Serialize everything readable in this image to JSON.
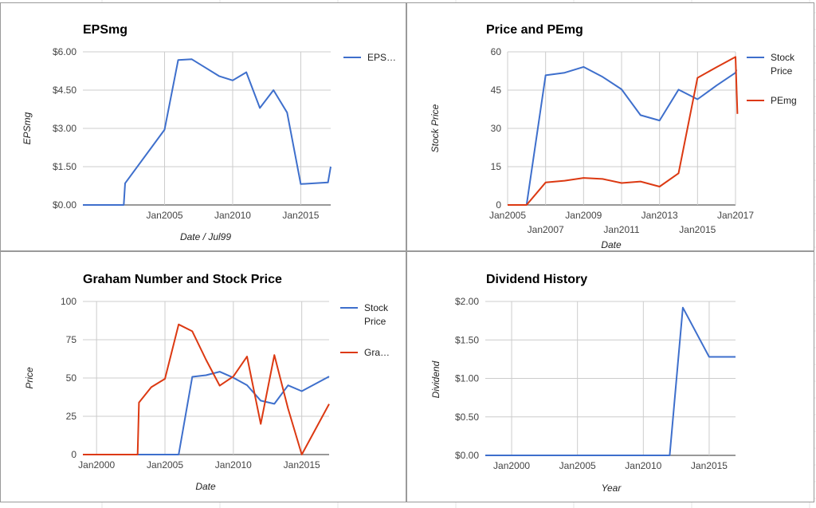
{
  "colors": {
    "blue": "#3e6fcc",
    "red": "#dc3912",
    "grid": "#cccccc",
    "axis": "#333333"
  },
  "chart_data": [
    {
      "type": "line",
      "title": "EPSmg",
      "xlabel": "Date / Jul99",
      "ylabel": "EPSmg",
      "xlim": [
        1999.0,
        2017.2
      ],
      "ylim": [
        0,
        6
      ],
      "x_ticks": [
        {
          "value": 2005,
          "label": "Jan2005"
        },
        {
          "value": 2010,
          "label": "Jan2010"
        },
        {
          "value": 2015,
          "label": "Jan2015"
        }
      ],
      "y_ticks": [
        {
          "value": 0,
          "label": "$0.00"
        },
        {
          "value": 1.5,
          "label": "$1.50"
        },
        {
          "value": 3,
          "label": "$3.00"
        },
        {
          "value": 4.5,
          "label": "$4.50"
        },
        {
          "value": 6,
          "label": "$6.00"
        }
      ],
      "legend_position": "right",
      "series": [
        {
          "name": "EPS…",
          "color": "#3e6fcc",
          "x": [
            1999.0,
            2002.0,
            2002.1,
            2005.0,
            2006.0,
            2007.0,
            2009.0,
            2010.0,
            2011.0,
            2012.0,
            2013.0,
            2014.0,
            2015.0,
            2017.0,
            2017.2
          ],
          "y": [
            0,
            0,
            0.85,
            2.95,
            5.68,
            5.71,
            5.05,
            4.88,
            5.2,
            3.8,
            4.5,
            3.62,
            0.82,
            0.88,
            1.5
          ]
        }
      ]
    },
    {
      "type": "line",
      "title": "Price and PEmg",
      "xlabel": "Date",
      "ylabel": "Stock Price",
      "xlim": [
        2005.0,
        2017.0
      ],
      "ylim": [
        0,
        60
      ],
      "x_ticks": [
        {
          "value": 2005,
          "label": "Jan2005",
          "row": 0
        },
        {
          "value": 2007,
          "label": "Jan2007",
          "row": 1
        },
        {
          "value": 2009,
          "label": "Jan2009",
          "row": 0
        },
        {
          "value": 2011,
          "label": "Jan2011",
          "row": 1
        },
        {
          "value": 2013,
          "label": "Jan2013",
          "row": 0
        },
        {
          "value": 2015,
          "label": "Jan2015",
          "row": 1
        },
        {
          "value": 2017,
          "label": "Jan2017",
          "row": 0
        }
      ],
      "y_ticks": [
        {
          "value": 0,
          "label": "0"
        },
        {
          "value": 15,
          "label": "15"
        },
        {
          "value": 30,
          "label": "30"
        },
        {
          "value": 45,
          "label": "45"
        },
        {
          "value": 60,
          "label": "60"
        }
      ],
      "legend_position": "right",
      "series": [
        {
          "name": "Stock Price",
          "color": "#3e6fcc",
          "x": [
            2005.0,
            2006.0,
            2007.0,
            2008.0,
            2009.0,
            2010.0,
            2011.0,
            2012.0,
            2013.0,
            2014.0,
            2015.0,
            2016.0,
            2017.0,
            2017.05
          ],
          "y": [
            0,
            0,
            50.8,
            51.8,
            54.1,
            50.2,
            45.3,
            35.2,
            33.1,
            45.2,
            41.4,
            46.8,
            51.8,
            53.0
          ]
        },
        {
          "name": "PEmg",
          "color": "#dc3912",
          "x": [
            2005.0,
            2006.0,
            2007.0,
            2008.0,
            2009.0,
            2010.0,
            2011.0,
            2012.0,
            2013.0,
            2014.0,
            2015.0,
            2016.0,
            2017.0,
            2017.1
          ],
          "y": [
            0,
            0,
            8.8,
            9.5,
            10.6,
            10.2,
            8.6,
            9.2,
            7.2,
            12.4,
            49.8,
            54.0,
            58.0,
            35.7
          ]
        }
      ]
    },
    {
      "type": "line",
      "title": "Graham Number and Stock Price",
      "xlabel": "Date",
      "ylabel": "Price",
      "xlim": [
        1999.0,
        2017.0
      ],
      "ylim": [
        0,
        100
      ],
      "x_ticks": [
        {
          "value": 2000,
          "label": "Jan2000"
        },
        {
          "value": 2005,
          "label": "Jan2005"
        },
        {
          "value": 2010,
          "label": "Jan2010"
        },
        {
          "value": 2015,
          "label": "Jan2015"
        }
      ],
      "y_ticks": [
        {
          "value": 0,
          "label": "0"
        },
        {
          "value": 25,
          "label": "25"
        },
        {
          "value": 50,
          "label": "50"
        },
        {
          "value": 75,
          "label": "75"
        },
        {
          "value": 100,
          "label": "100"
        }
      ],
      "legend_position": "right",
      "series": [
        {
          "name": "Stock Price",
          "color": "#3e6fcc",
          "x": [
            1999.0,
            2005.0,
            2006.0,
            2007.0,
            2008.0,
            2009.0,
            2010.0,
            2011.0,
            2012.0,
            2013.0,
            2014.0,
            2015.0,
            2017.0
          ],
          "y": [
            0,
            0,
            0,
            50.8,
            51.8,
            54.1,
            50.2,
            45.3,
            35.2,
            33.1,
            45.2,
            41.4,
            51.0
          ]
        },
        {
          "name": "Gra…",
          "color": "#dc3912",
          "x": [
            1999.0,
            2003.0,
            2003.1,
            2004.0,
            2005.0,
            2006.0,
            2007.0,
            2008.0,
            2009.0,
            2010.0,
            2011.0,
            2012.0,
            2013.0,
            2014.0,
            2015.0,
            2017.0
          ],
          "y": [
            0,
            0,
            34,
            44,
            49.5,
            85,
            80.5,
            62,
            45,
            51,
            64,
            20,
            65,
            30,
            0,
            33
          ]
        }
      ]
    },
    {
      "type": "line",
      "title": "Dividend History",
      "xlabel": "Year",
      "ylabel": "Dividend",
      "xlim": [
        1998.0,
        2017.0
      ],
      "ylim": [
        0,
        2
      ],
      "x_ticks": [
        {
          "value": 2000,
          "label": "Jan2000"
        },
        {
          "value": 2005,
          "label": "Jan2005"
        },
        {
          "value": 2010,
          "label": "Jan2010"
        },
        {
          "value": 2015,
          "label": "Jan2015"
        }
      ],
      "y_ticks": [
        {
          "value": 0,
          "label": "$0.00"
        },
        {
          "value": 0.5,
          "label": "$0.50"
        },
        {
          "value": 1,
          "label": "$1.00"
        },
        {
          "value": 1.5,
          "label": "$1.50"
        },
        {
          "value": 2,
          "label": "$2.00"
        }
      ],
      "series": [
        {
          "name": "",
          "color": "#3e6fcc",
          "x": [
            1998.0,
            2012.0,
            2013.0,
            2015.0,
            2017.0
          ],
          "y": [
            0,
            0,
            1.92,
            1.28,
            1.28
          ]
        }
      ]
    }
  ]
}
